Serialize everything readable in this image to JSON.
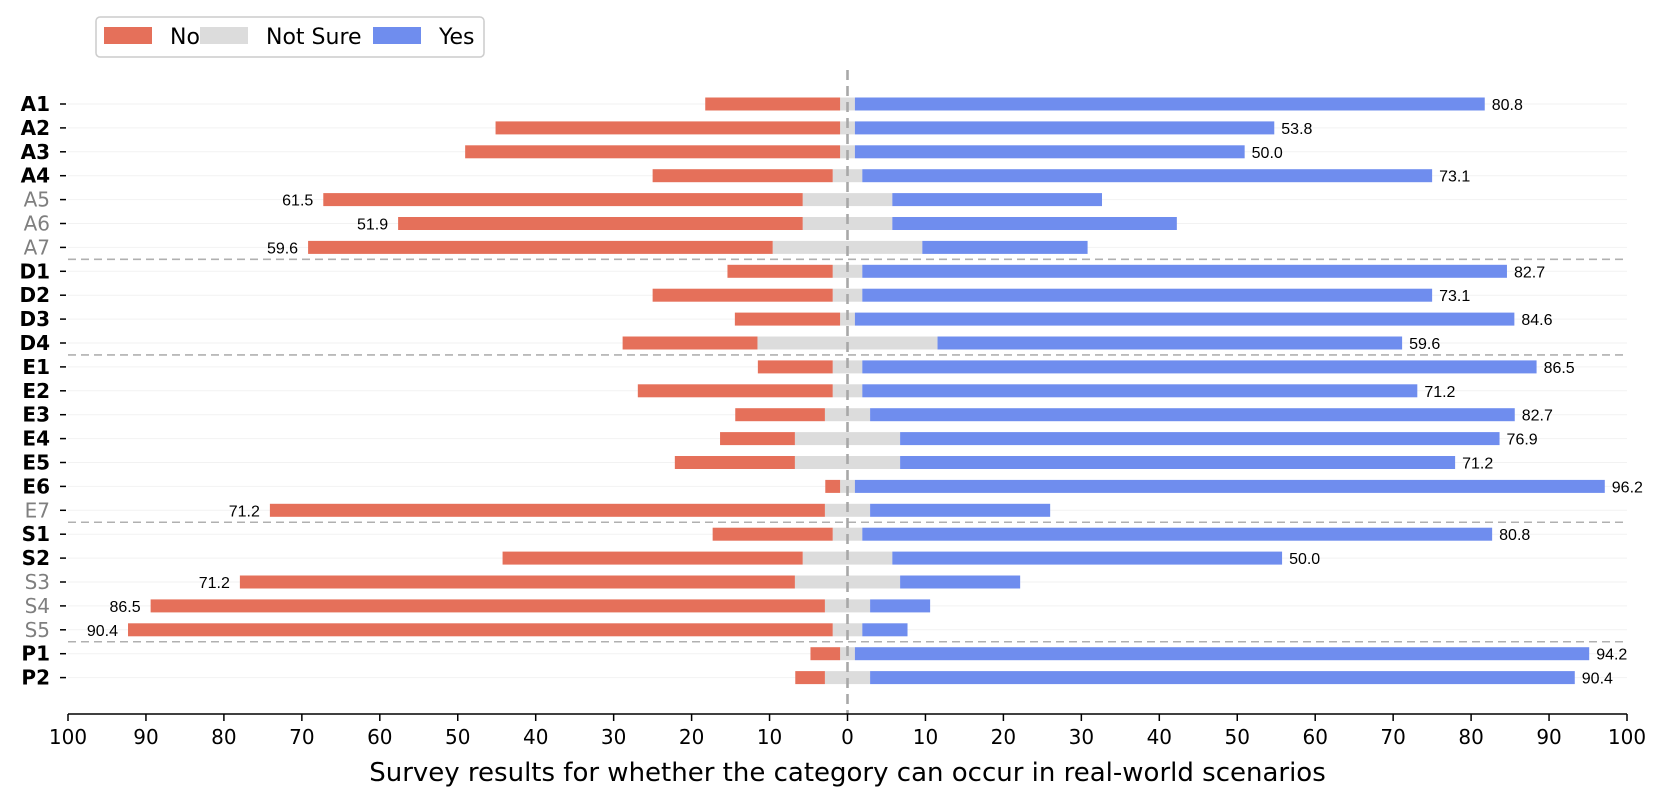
{
  "chart_data": {
    "type": "bar",
    "orientation": "horizontal-diverging",
    "xlabel": "Survey results for whether the category can occur in real-world scenarios",
    "xlim": [
      -100,
      100
    ],
    "xticks": [
      -100,
      -90,
      -80,
      -70,
      -60,
      -50,
      -40,
      -30,
      -20,
      -10,
      0,
      10,
      20,
      30,
      40,
      50,
      60,
      70,
      80,
      90,
      100
    ],
    "xtick_labels": [
      "100",
      "90",
      "80",
      "70",
      "60",
      "50",
      "40",
      "30",
      "20",
      "10",
      "0",
      "10",
      "20",
      "30",
      "40",
      "50",
      "60",
      "70",
      "80",
      "90",
      "100"
    ],
    "legend": {
      "placement": "top-left",
      "entries": [
        {
          "name": "No",
          "color": "#E5705A"
        },
        {
          "name": "Not Sure",
          "color": "#DCDCDC"
        },
        {
          "name": "Yes",
          "color": "#6F8DEE"
        }
      ]
    },
    "groups": [
      {
        "name": "A",
        "categories": [
          "A1",
          "A2",
          "A3",
          "A4",
          "A5",
          "A6",
          "A7"
        ]
      },
      {
        "name": "D",
        "categories": [
          "D1",
          "D2",
          "D3",
          "D4"
        ]
      },
      {
        "name": "E",
        "categories": [
          "E1",
          "E2",
          "E3",
          "E4",
          "E5",
          "E6",
          "E7"
        ]
      },
      {
        "name": "S",
        "categories": [
          "S1",
          "S2",
          "S3",
          "S4",
          "S5"
        ]
      },
      {
        "name": "P",
        "categories": [
          "P1",
          "P2"
        ]
      }
    ],
    "categories": [
      "A1",
      "A2",
      "A3",
      "A4",
      "A5",
      "A6",
      "A7",
      "D1",
      "D2",
      "D3",
      "D4",
      "E1",
      "E2",
      "E3",
      "E4",
      "E5",
      "E6",
      "E7",
      "S1",
      "S2",
      "S3",
      "S4",
      "S5",
      "P1",
      "P2"
    ],
    "highlighted": [
      true,
      true,
      true,
      true,
      false,
      false,
      false,
      true,
      true,
      true,
      true,
      true,
      true,
      true,
      true,
      true,
      true,
      false,
      true,
      true,
      false,
      false,
      false,
      true,
      true
    ],
    "series": [
      {
        "name": "No",
        "values": [
          17.3,
          44.2,
          48.1,
          23.1,
          61.5,
          51.9,
          59.6,
          13.5,
          23.1,
          13.5,
          17.3,
          9.6,
          25.0,
          11.5,
          9.6,
          15.4,
          1.9,
          71.2,
          15.4,
          38.5,
          71.2,
          86.5,
          90.4,
          3.8,
          3.8
        ]
      },
      {
        "name": "Not Sure",
        "values": [
          1.9,
          1.9,
          1.9,
          3.8,
          11.5,
          11.5,
          19.2,
          3.8,
          3.8,
          1.9,
          23.1,
          3.8,
          3.8,
          5.8,
          13.5,
          13.5,
          1.9,
          5.8,
          3.8,
          11.5,
          13.5,
          5.8,
          3.8,
          1.9,
          5.8
        ]
      },
      {
        "name": "Yes",
        "values": [
          80.8,
          53.8,
          50.0,
          73.1,
          26.9,
          36.5,
          21.2,
          82.7,
          73.1,
          84.6,
          59.6,
          86.5,
          71.2,
          82.7,
          76.9,
          71.2,
          96.2,
          23.1,
          80.8,
          50.0,
          15.4,
          7.7,
          5.8,
          94.2,
          90.4
        ]
      }
    ],
    "value_labels": [
      {
        "category": "A1",
        "series": "Yes",
        "text": "80.8"
      },
      {
        "category": "A2",
        "series": "Yes",
        "text": "53.8"
      },
      {
        "category": "A3",
        "series": "Yes",
        "text": "50.0"
      },
      {
        "category": "A4",
        "series": "Yes",
        "text": "73.1"
      },
      {
        "category": "A5",
        "series": "No",
        "text": "61.5"
      },
      {
        "category": "A6",
        "series": "No",
        "text": "51.9"
      },
      {
        "category": "A7",
        "series": "No",
        "text": "59.6"
      },
      {
        "category": "D1",
        "series": "Yes",
        "text": "82.7"
      },
      {
        "category": "D2",
        "series": "Yes",
        "text": "73.1"
      },
      {
        "category": "D3",
        "series": "Yes",
        "text": "84.6"
      },
      {
        "category": "D4",
        "series": "Yes",
        "text": "59.6"
      },
      {
        "category": "E1",
        "series": "Yes",
        "text": "86.5"
      },
      {
        "category": "E2",
        "series": "Yes",
        "text": "71.2"
      },
      {
        "category": "E3",
        "series": "Yes",
        "text": "82.7"
      },
      {
        "category": "E4",
        "series": "Yes",
        "text": "76.9"
      },
      {
        "category": "E5",
        "series": "Yes",
        "text": "71.2"
      },
      {
        "category": "E6",
        "series": "Yes",
        "text": "96.2"
      },
      {
        "category": "E7",
        "series": "No",
        "text": "71.2"
      },
      {
        "category": "S1",
        "series": "Yes",
        "text": "80.8"
      },
      {
        "category": "S2",
        "series": "Yes",
        "text": "50.0"
      },
      {
        "category": "S3",
        "series": "No",
        "text": "71.2"
      },
      {
        "category": "S4",
        "series": "No",
        "text": "86.5"
      },
      {
        "category": "S5",
        "series": "No",
        "text": "90.4"
      },
      {
        "category": "P1",
        "series": "Yes",
        "text": "94.2"
      },
      {
        "category": "P2",
        "series": "Yes",
        "text": "90.4"
      }
    ],
    "group_separators": "dashed gray lines between groups",
    "center_line": "dashed gray vertical line at 0",
    "grid": false
  }
}
